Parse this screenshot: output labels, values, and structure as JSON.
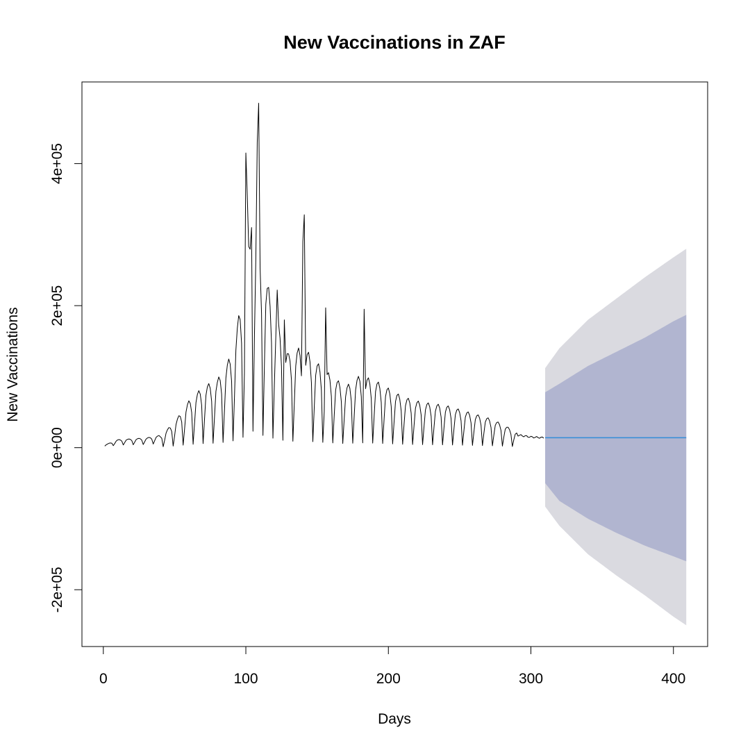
{
  "chart_data": {
    "type": "line",
    "title": "New Vaccinations in ZAF",
    "xlabel": "Days",
    "ylabel": "New Vaccinations",
    "xlim": [
      -15,
      424
    ],
    "ylim": [
      -280000,
      515000
    ],
    "x_ticks": [
      0,
      100,
      200,
      300,
      400
    ],
    "x_tick_labels": [
      "0",
      "100",
      "200",
      "300",
      "400"
    ],
    "y_ticks": [
      -200000,
      0,
      200000,
      400000
    ],
    "y_tick_labels": [
      "-2e+05",
      "0e+00",
      "2e+05",
      "4e+05"
    ],
    "grid": false,
    "legend": "none",
    "colors": {
      "observed": "#000000",
      "forecast_mean": "#3a8fd8",
      "band_80": "#b1b5d0",
      "band_95": "#dadae0",
      "axes": "#000000"
    },
    "observed": {
      "anchors": [
        [
          1,
          3000
        ],
        [
          10,
          9000
        ],
        [
          20,
          10000
        ],
        [
          30,
          11000
        ],
        [
          40,
          14000
        ],
        [
          50,
          30000
        ],
        [
          60,
          55000
        ],
        [
          70,
          72000
        ],
        [
          80,
          80000
        ],
        [
          90,
          110000
        ],
        [
          100,
          200000
        ],
        [
          105,
          290000
        ],
        [
          110,
          230000
        ],
        [
          120,
          160000
        ],
        [
          130,
          110000
        ],
        [
          140,
          120000
        ],
        [
          150,
          100000
        ],
        [
          160,
          85000
        ],
        [
          170,
          72000
        ],
        [
          180,
          85000
        ],
        [
          190,
          80000
        ],
        [
          200,
          70000
        ],
        [
          210,
          60000
        ],
        [
          220,
          55000
        ],
        [
          230,
          52000
        ],
        [
          240,
          50000
        ],
        [
          250,
          45000
        ],
        [
          260,
          40000
        ],
        [
          270,
          35000
        ],
        [
          280,
          28000
        ],
        [
          290,
          18000
        ],
        [
          300,
          15000
        ],
        [
          309,
          14000
        ]
      ],
      "weekly_cycle_days": 7,
      "spikes": [
        [
          100,
          415000
        ],
        [
          101,
          355000
        ],
        [
          108,
          430000
        ],
        [
          109,
          485000
        ],
        [
          104,
          310000
        ],
        [
          141,
          328000
        ],
        [
          140,
          290000
        ],
        [
          156,
          197000
        ],
        [
          183,
          195000
        ],
        [
          122,
          222000
        ],
        [
          127,
          180000
        ]
      ]
    },
    "forecast": {
      "x_start": 310,
      "x_end": 409,
      "mean": 14000,
      "lower_80": [
        [
          310,
          -50000
        ],
        [
          320,
          -75000
        ],
        [
          340,
          -100000
        ],
        [
          360,
          -120000
        ],
        [
          380,
          -138000
        ],
        [
          400,
          -153000
        ],
        [
          409,
          -160000
        ]
      ],
      "upper_80": [
        [
          310,
          78000
        ],
        [
          320,
          90000
        ],
        [
          340,
          115000
        ],
        [
          360,
          135000
        ],
        [
          380,
          155000
        ],
        [
          400,
          178000
        ],
        [
          409,
          187000
        ]
      ],
      "lower_95": [
        [
          310,
          -83000
        ],
        [
          320,
          -110000
        ],
        [
          340,
          -150000
        ],
        [
          360,
          -180000
        ],
        [
          380,
          -208000
        ],
        [
          400,
          -238000
        ],
        [
          409,
          -250000
        ]
      ],
      "upper_95": [
        [
          310,
          112000
        ],
        [
          320,
          140000
        ],
        [
          340,
          180000
        ],
        [
          360,
          210000
        ],
        [
          380,
          240000
        ],
        [
          400,
          268000
        ],
        [
          409,
          280000
        ]
      ]
    }
  }
}
